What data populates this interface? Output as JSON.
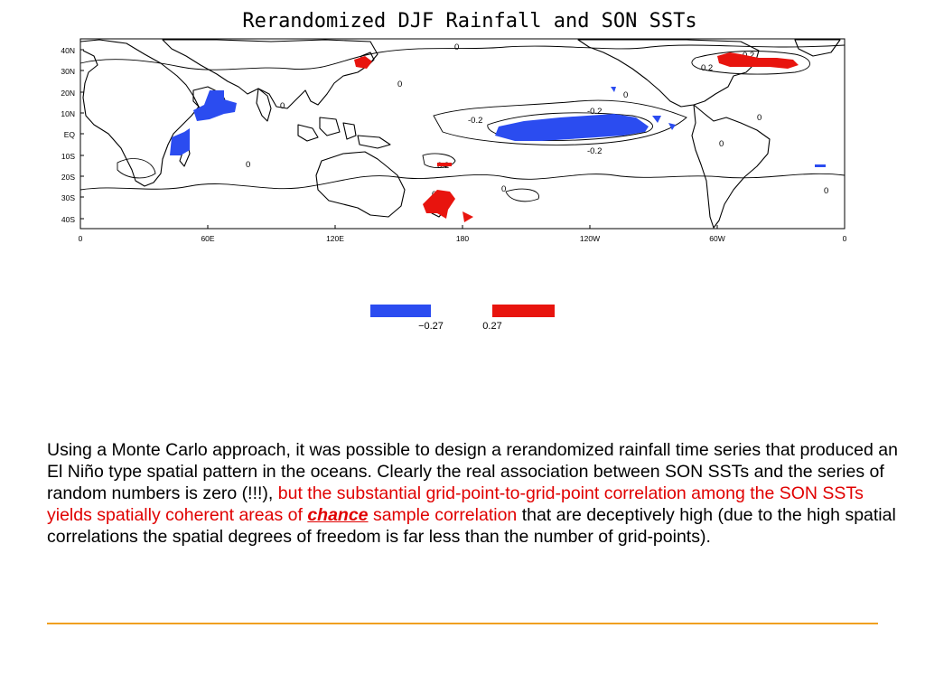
{
  "map": {
    "title": "Rerandomized DJF Rainfall and SON SSTs",
    "lat_ticks": [
      "40N",
      "30N",
      "20N",
      "10N",
      "EQ",
      "10S",
      "20S",
      "30S",
      "40S"
    ],
    "lon_ticks": [
      "0",
      "60E",
      "120E",
      "180",
      "120W",
      "60W",
      "0"
    ],
    "contour_labels": [
      "0",
      "0",
      "0",
      "0",
      "0",
      "0",
      "0",
      "0",
      "0",
      "0",
      "-0.2",
      "-0.2",
      "-0.2",
      "0.2",
      "0.2",
      "0.2",
      "0.2"
    ],
    "colors": {
      "negative": "#2b4cf0",
      "positive": "#e8140e",
      "coast": "#000000"
    },
    "legend": {
      "neg_label": "−0.27",
      "pos_label": "0.27"
    }
  },
  "caption": {
    "part1": "Using a Monte Carlo approach, it was possible to design a rerandomized rainfall time series that produced an El Niño type spatial pattern in the oceans. Clearly the real association between SON SSTs and the series of random numbers is zero (!!!), ",
    "part2": "but the substantial grid-point-to-grid-point correlation among the SON SSTs yields spatially coherent areas of ",
    "part3": "chance",
    "part4": " sample correlation",
    "part5": " that are deceptively high (due to the high spatial correlations the spatial degrees of freedom is far less than the number of grid-points)."
  },
  "rule": {
    "color": "#f0a020"
  }
}
